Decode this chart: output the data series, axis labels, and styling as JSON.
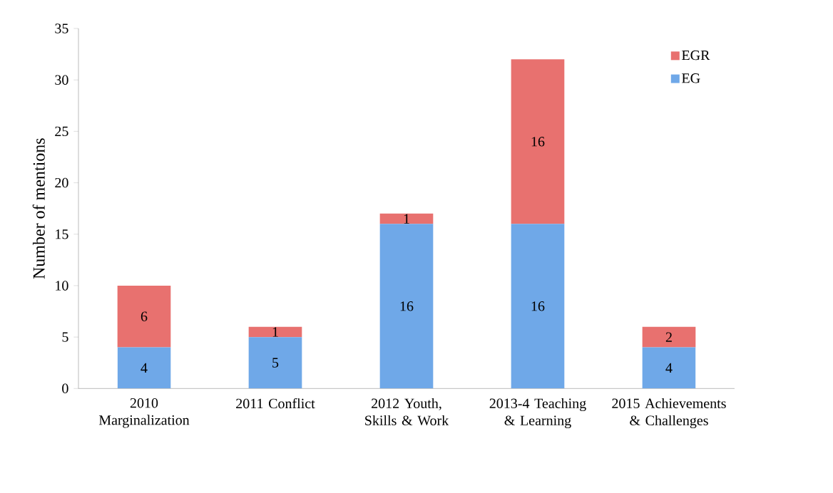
{
  "chart_data": {
    "type": "bar",
    "stacked": true,
    "ylabel": "Number of mentions",
    "categories": [
      "2010 Marginalization",
      "2011 Conflict",
      "2012 Youth, Skills & Work",
      "2013-4 Teaching & Learning",
      "2015 Achievements & Challenges"
    ],
    "series": [
      {
        "name": "EG",
        "color": "#6fa8e8",
        "values": [
          4,
          5,
          16,
          16,
          4
        ]
      },
      {
        "name": "EGR",
        "color": "#e8716f",
        "values": [
          6,
          1,
          1,
          16,
          2
        ]
      }
    ],
    "ylim": [
      0,
      35
    ],
    "yticks": [
      0,
      5,
      10,
      15,
      20,
      25,
      30,
      35
    ],
    "data_labels": true,
    "legend": "top right",
    "grid": false
  }
}
